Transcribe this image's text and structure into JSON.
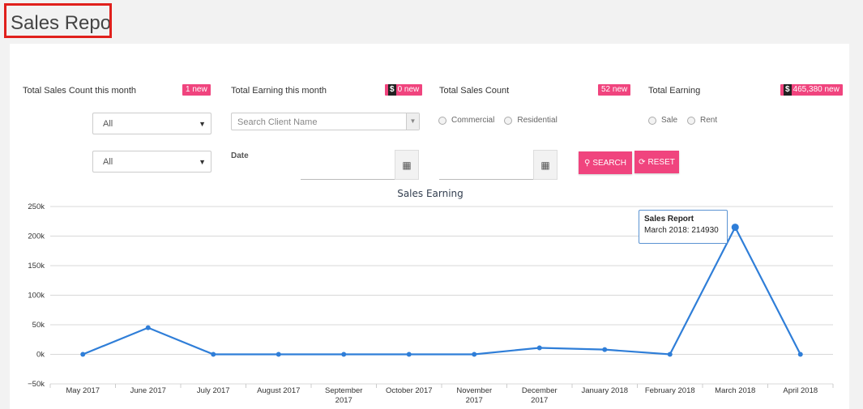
{
  "page": {
    "title": "Sales Report"
  },
  "stats": [
    {
      "label": "Total Sales Count this month",
      "badge": "1 new",
      "has_dollar": false
    },
    {
      "label": "Total Earning this month",
      "badge": "0 new",
      "has_dollar": true
    },
    {
      "label": "Total Sales Count",
      "badge": "52 new",
      "has_dollar": false
    },
    {
      "label": "Total Earning",
      "badge": "465,380 new",
      "has_dollar": true
    }
  ],
  "icons": {
    "dollar": "$",
    "caret": "▼",
    "calendar": "▦",
    "search": "🔍",
    "reset": "⟳"
  },
  "filters": {
    "select1": {
      "value": "All"
    },
    "select2": {
      "value": "All"
    },
    "client_search": {
      "placeholder": "Search Client Name"
    },
    "property_type": {
      "options": [
        "Commercial",
        "Residential"
      ]
    },
    "listing_type": {
      "options": [
        "Sale",
        "Rent"
      ]
    },
    "date_label": "Date",
    "search_button": "SEARCH",
    "reset_button": "RESET"
  },
  "tooltip": {
    "title": "Sales Report",
    "text": "March 2018: 214930"
  },
  "colors": {
    "accent": "#f0447e",
    "line": "#2f7ed8"
  },
  "chart_data": {
    "type": "line",
    "title": "Sales Earning",
    "categories": [
      "May 2017",
      "June 2017",
      "July 2017",
      "August 2017",
      "September 2017",
      "October 2017",
      "November 2017",
      "December 2017",
      "January 2018",
      "February 2018",
      "March 2018",
      "April 2018"
    ],
    "category_lines": [
      [
        "May 2017"
      ],
      [
        "June 2017"
      ],
      [
        "July 2017"
      ],
      [
        "August 2017"
      ],
      [
        "September",
        "2017"
      ],
      [
        "October 2017"
      ],
      [
        "November",
        "2017"
      ],
      [
        "December",
        "2017"
      ],
      [
        "January 2018"
      ],
      [
        "February 2018"
      ],
      [
        "March 2018"
      ],
      [
        "April 2018"
      ]
    ],
    "series": [
      {
        "name": "Sales Report",
        "values": [
          0,
          45000,
          0,
          0,
          0,
          0,
          0,
          11000,
          8000,
          0,
          214930,
          0
        ]
      }
    ],
    "ylim": [
      -50000,
      250000
    ],
    "yticks": [
      -50000,
      0,
      50000,
      100000,
      150000,
      200000,
      250000
    ],
    "ytick_labels": [
      "−50k",
      "0k",
      "50k",
      "100k",
      "150k",
      "200k",
      "250k"
    ],
    "grid": true,
    "legend": "none"
  }
}
